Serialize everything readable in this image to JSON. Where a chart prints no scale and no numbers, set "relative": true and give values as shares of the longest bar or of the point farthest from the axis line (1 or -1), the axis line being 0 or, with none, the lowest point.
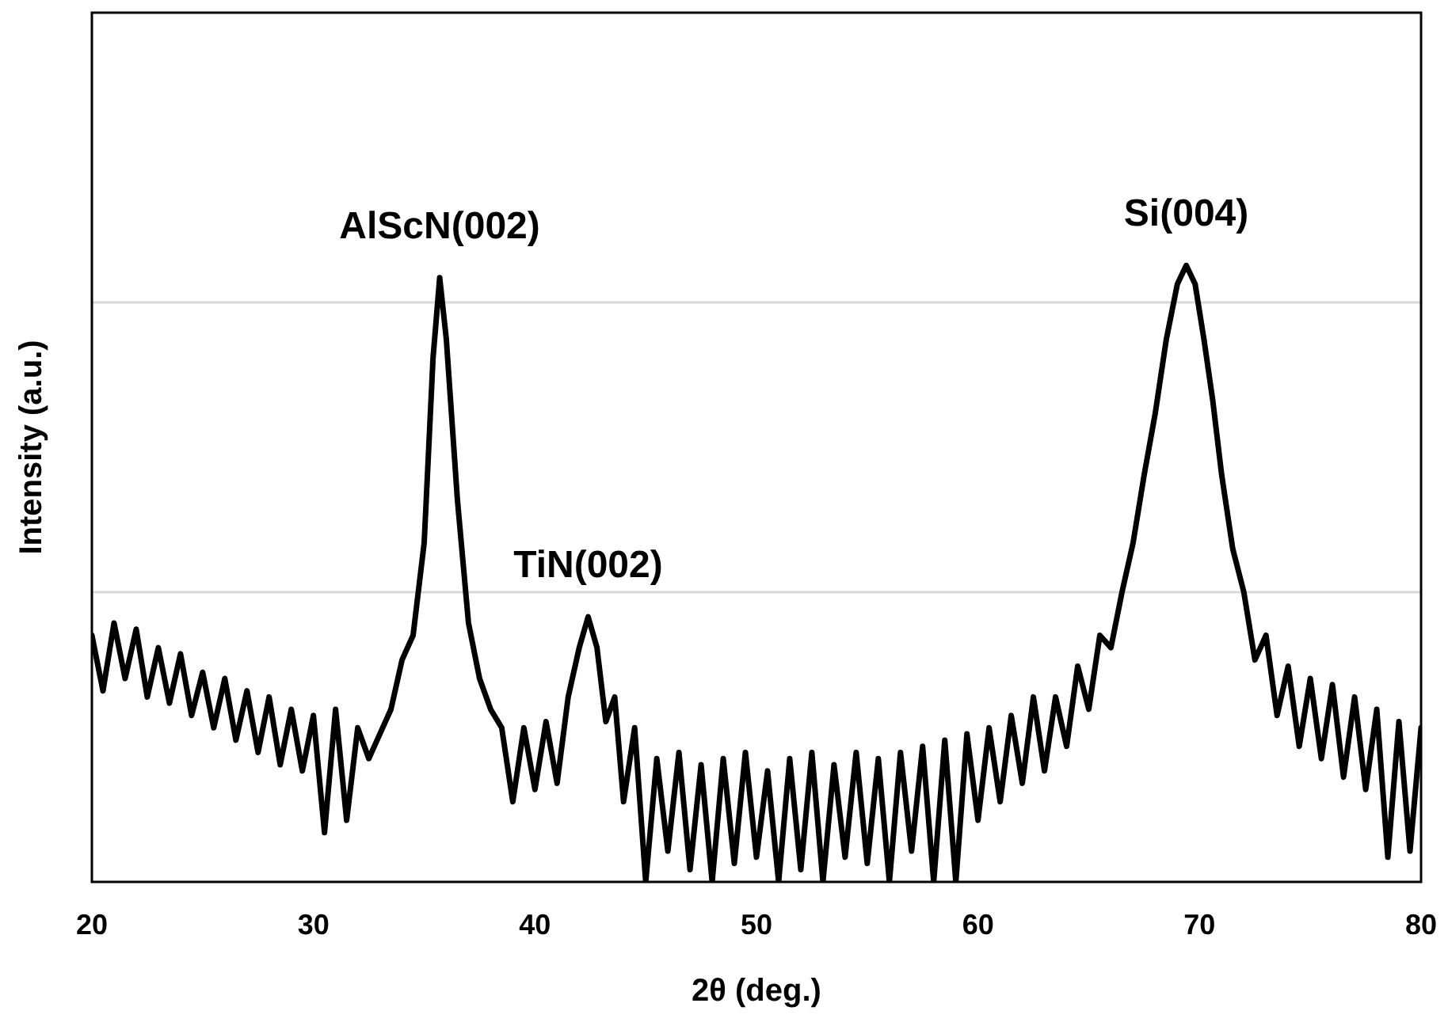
{
  "chart_data": {
    "type": "line",
    "xlabel": "2θ (deg.)",
    "ylabel": "Intensity (a.u.)",
    "relative": true,
    "tick_labels": "x",
    "ref_lines": [
      {
        "axis": "y",
        "value": 0.47,
        "color": "#d9d9d9"
      },
      {
        "axis": "y",
        "value": 0.94,
        "color": "#d9d9d9"
      }
    ],
    "marker": "none",
    "line_style": "solid",
    "xlim": [
      20,
      80
    ],
    "xticks": [
      20,
      30,
      40,
      50,
      60,
      70,
      80
    ],
    "annotations": [
      {
        "text": "AlScN(002)",
        "x": 35.7,
        "y": 0.98
      },
      {
        "text": "TiN(002)",
        "x": 42.4,
        "y": 0.43
      },
      {
        "text": "Si(004)",
        "x": 69.4,
        "y": 1.0
      }
    ],
    "series": [
      {
        "color": "#000000",
        "x": [
          20,
          20.5,
          21,
          21.5,
          22,
          22.5,
          23,
          23.5,
          24,
          24.5,
          25,
          25.5,
          26,
          26.5,
          27,
          27.5,
          28,
          28.5,
          29,
          29.5,
          30,
          30.5,
          31,
          31.5,
          32,
          32.5,
          33,
          33.5,
          34,
          34.5,
          35,
          35.4,
          35.7,
          36,
          36.5,
          37,
          37.5,
          38,
          38.5,
          39,
          39.5,
          40,
          40.5,
          41,
          41.5,
          42,
          42.4,
          42.8,
          43.2,
          43.6,
          44,
          44.5,
          45,
          45.5,
          46,
          46.5,
          47,
          47.5,
          48,
          48.5,
          49,
          49.5,
          50,
          50.5,
          51,
          51.5,
          52,
          52.5,
          53,
          53.5,
          54,
          54.5,
          55,
          55.5,
          56,
          56.5,
          57,
          57.5,
          58,
          58.5,
          59,
          59.5,
          60,
          60.5,
          61,
          61.5,
          62,
          62.5,
          63,
          63.5,
          64,
          64.5,
          65,
          65.5,
          66,
          66.5,
          67,
          67.5,
          68,
          68.5,
          69,
          69.4,
          69.8,
          70.2,
          70.6,
          71,
          71.5,
          72,
          72.5,
          73,
          73.5,
          74,
          74.5,
          75,
          75.5,
          76,
          76.5,
          77,
          77.5,
          78,
          78.5,
          79,
          79.5,
          80
        ],
        "values": [
          0.4,
          0.31,
          0.42,
          0.33,
          0.41,
          0.3,
          0.38,
          0.29,
          0.37,
          0.27,
          0.34,
          0.25,
          0.33,
          0.23,
          0.31,
          0.21,
          0.3,
          0.19,
          0.28,
          0.18,
          0.27,
          0.08,
          0.28,
          0.1,
          0.25,
          0.2,
          0.24,
          0.28,
          0.36,
          0.4,
          0.55,
          0.85,
          0.98,
          0.88,
          0.62,
          0.42,
          0.33,
          0.28,
          0.25,
          0.13,
          0.25,
          0.15,
          0.26,
          0.16,
          0.3,
          0.38,
          0.43,
          0.38,
          0.26,
          0.3,
          0.13,
          0.25,
          0.0,
          0.2,
          0.05,
          0.21,
          0.02,
          0.19,
          0.0,
          0.2,
          0.03,
          0.21,
          0.04,
          0.18,
          0.0,
          0.2,
          0.02,
          0.21,
          0.0,
          0.19,
          0.04,
          0.21,
          0.03,
          0.2,
          0.0,
          0.21,
          0.05,
          0.22,
          0.0,
          0.23,
          0.0,
          0.24,
          0.1,
          0.25,
          0.13,
          0.27,
          0.16,
          0.3,
          0.18,
          0.3,
          0.22,
          0.35,
          0.28,
          0.4,
          0.38,
          0.47,
          0.55,
          0.66,
          0.76,
          0.88,
          0.97,
          1.0,
          0.97,
          0.88,
          0.78,
          0.66,
          0.54,
          0.47,
          0.36,
          0.4,
          0.27,
          0.35,
          0.22,
          0.33,
          0.2,
          0.32,
          0.17,
          0.3,
          0.15,
          0.28,
          0.04,
          0.26,
          0.05,
          0.25
        ]
      }
    ]
  }
}
